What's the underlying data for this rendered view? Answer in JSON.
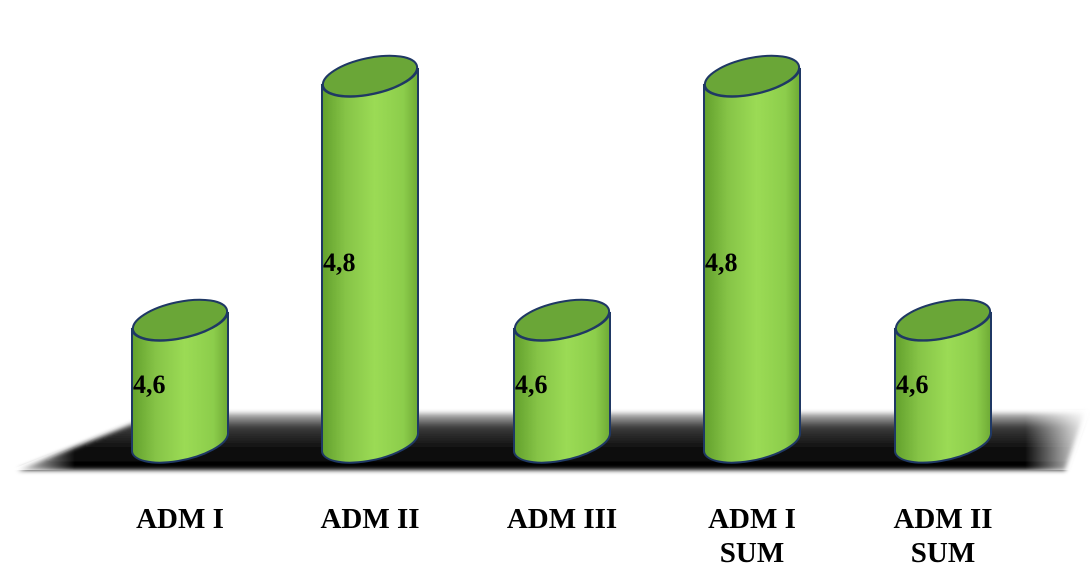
{
  "chart_data": {
    "type": "bar",
    "categories": [
      [
        "ADM I"
      ],
      [
        "ADM II"
      ],
      [
        "ADM III"
      ],
      [
        "ADM I",
        "SUM"
      ],
      [
        "ADM II",
        "SUM"
      ]
    ],
    "values": [
      4.6,
      4.8,
      4.6,
      4.8,
      4.6
    ],
    "value_labels": [
      "4,6",
      "4,8",
      "4,6",
      "4,8",
      "4,6"
    ],
    "title": "",
    "xlabel": "",
    "ylabel": "",
    "ylim": [
      4.5,
      4.85
    ],
    "grid": false,
    "legend": "none",
    "style": "3d-cylinder",
    "colors": {
      "bar_fill": "#92d050",
      "bar_top": "#6aa637",
      "bar_outline": "#1f3864",
      "floor": "#1a1a1a"
    }
  }
}
